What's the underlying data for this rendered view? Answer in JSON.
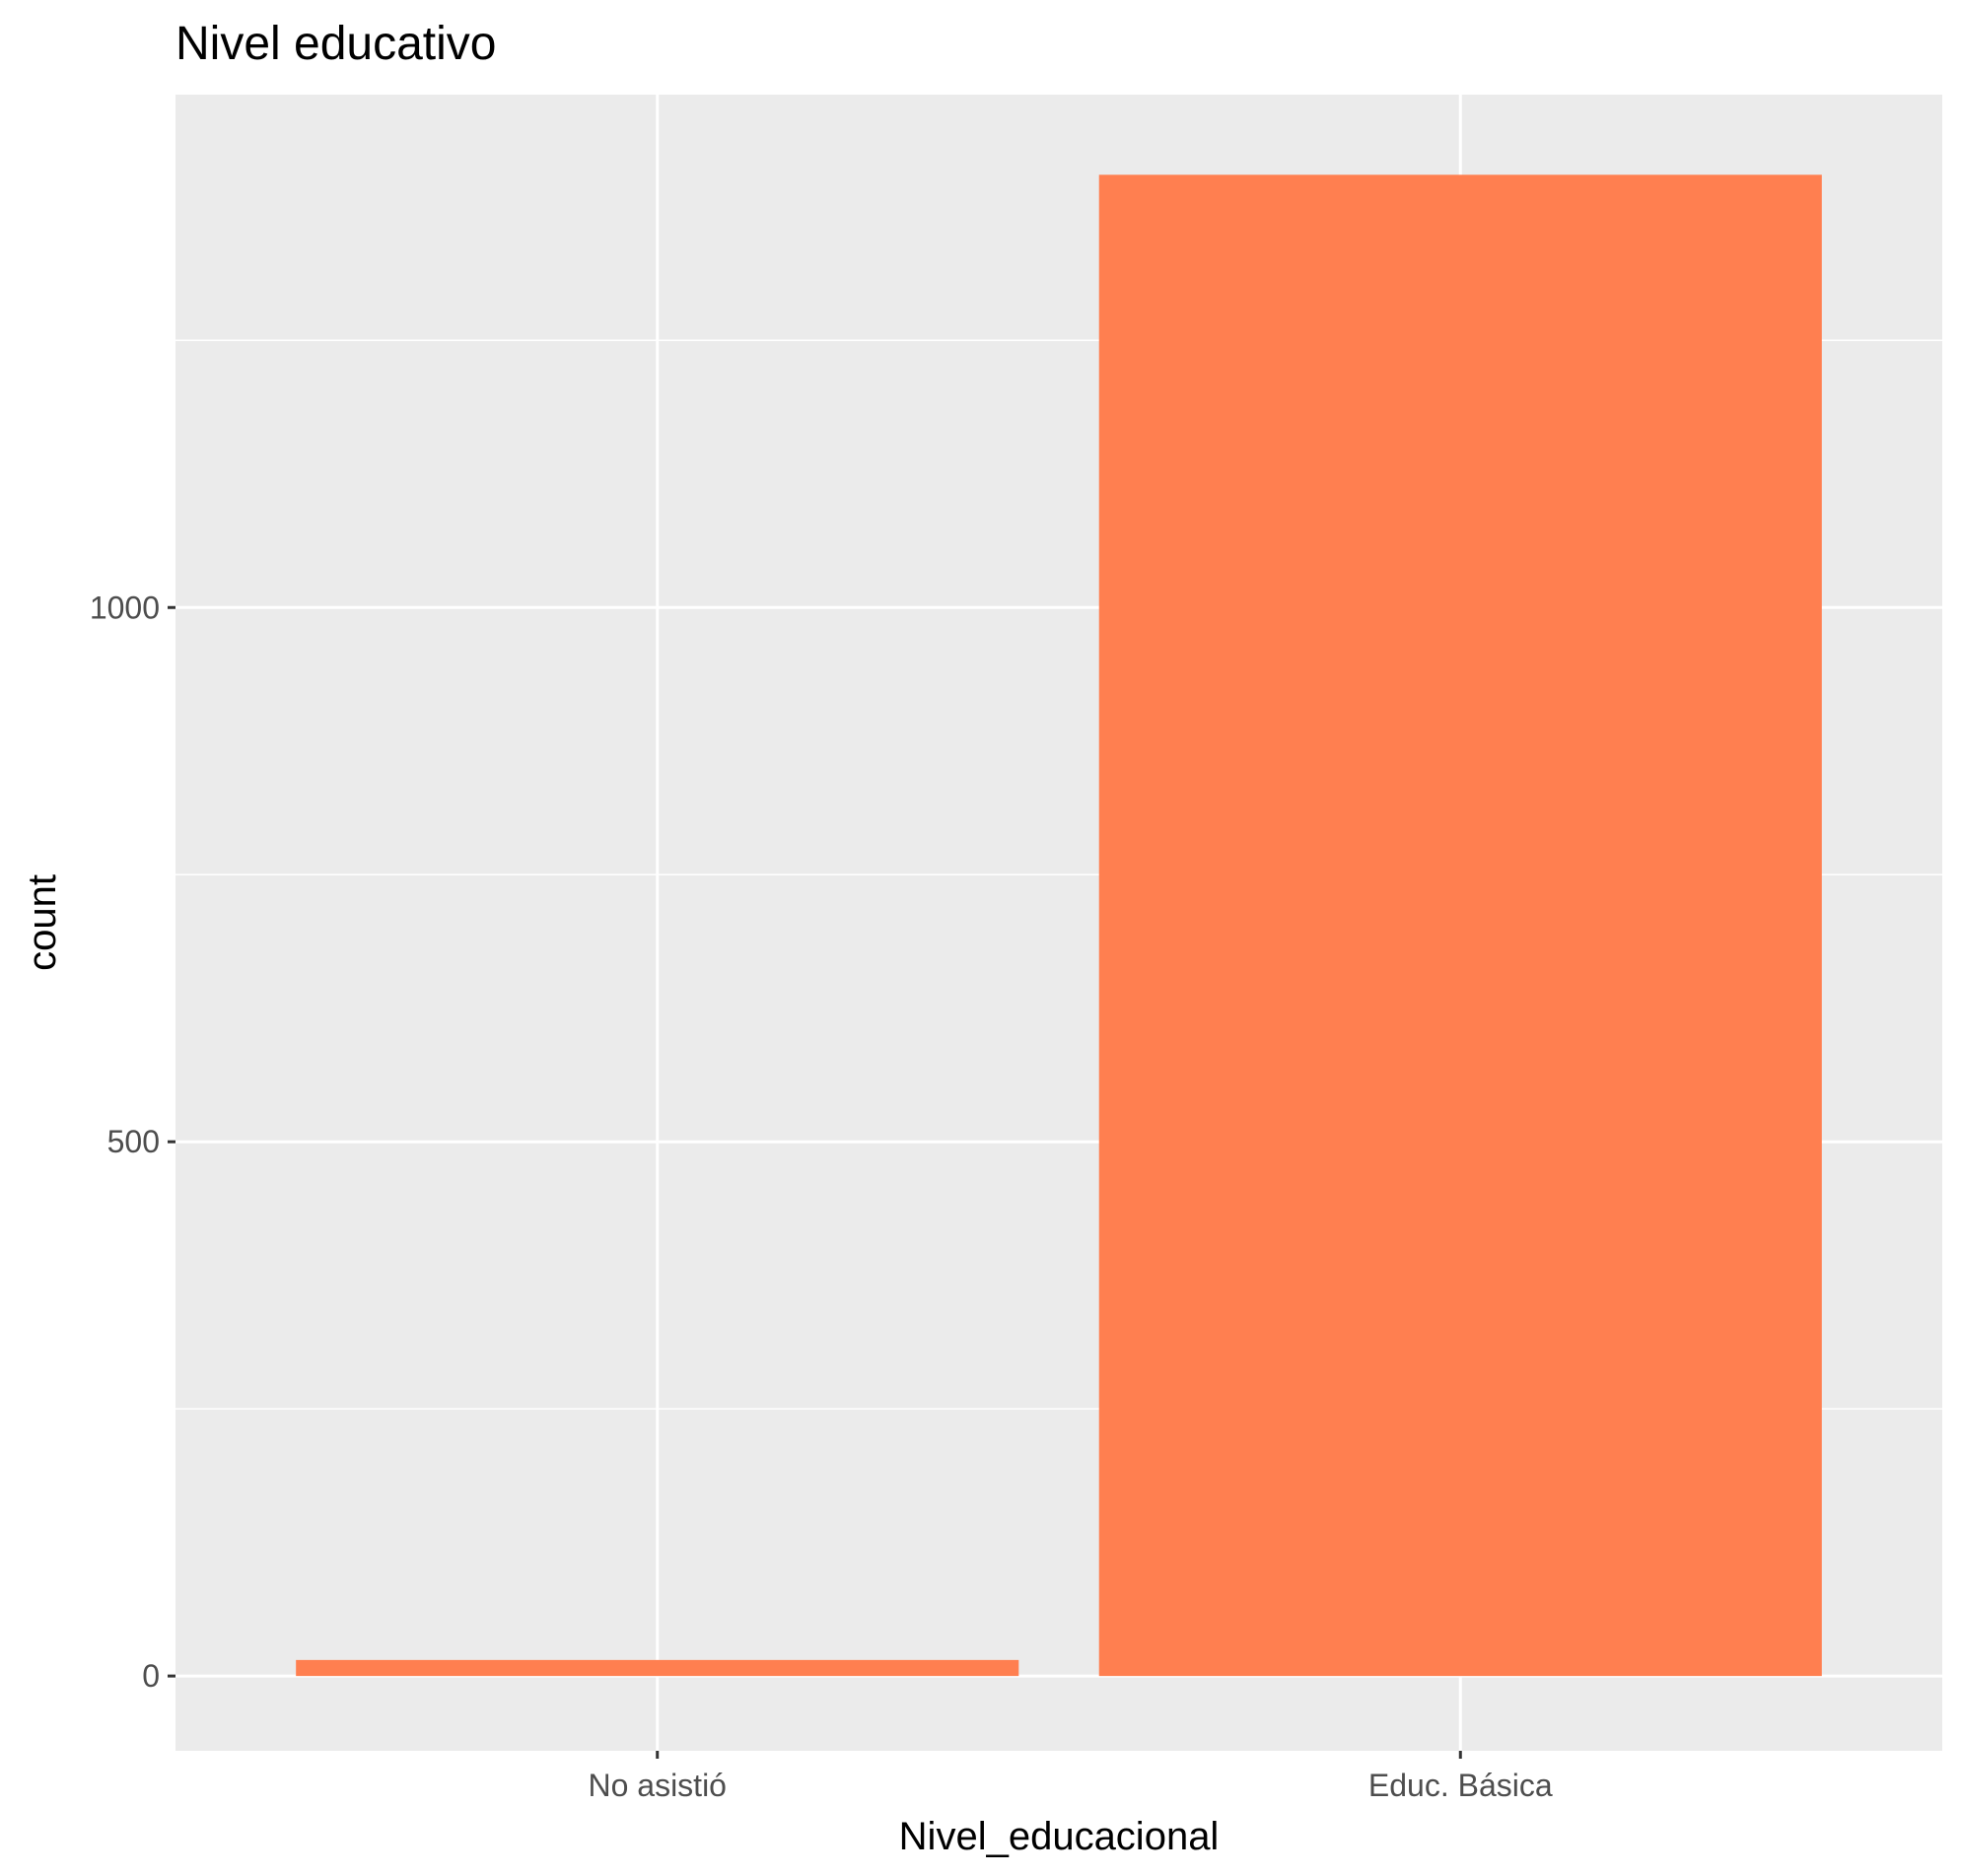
{
  "chart_data": {
    "type": "bar",
    "title": "Nivel educativo",
    "xlabel": "Nivel_educacional",
    "ylabel": "count",
    "categories": [
      "No asistió",
      "Educ. Básica"
    ],
    "values": [
      15,
      1405
    ],
    "ylim": [
      -70,
      1480
    ],
    "yticks": [
      0,
      500,
      1000
    ],
    "grid": true,
    "legend": "none",
    "colors": {
      "bar": "#FF7F50",
      "panel": "#EBEBEB",
      "grid": "#FFFFFF",
      "tick_label": "#4D4D4D",
      "tick_mark": "#333333",
      "text": "#000000"
    }
  }
}
